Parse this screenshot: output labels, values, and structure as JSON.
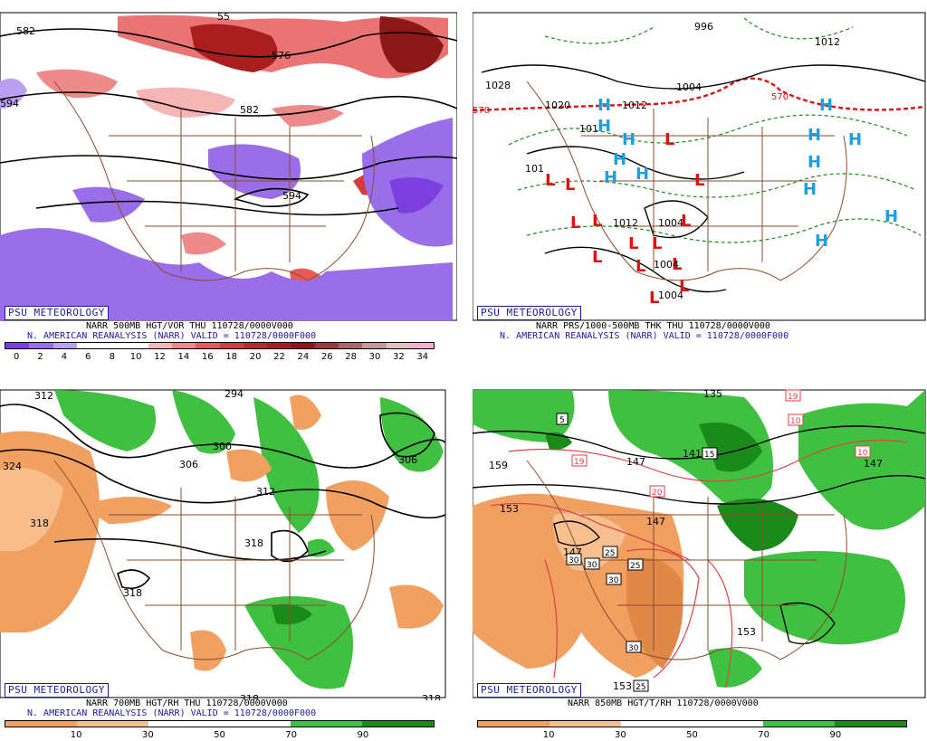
{
  "panels": [
    {
      "id": "vorticity",
      "psu_label": "PSU METEOROLOGY",
      "caption1": "NARR 500MB HGT/VOR THU 110728/0000V000",
      "caption2": "N. AMERICAN REANALYSIS (NARR) VALID = 110728/0000F000",
      "colorbar": {
        "colors": [
          "#7b3fe0",
          "#9a6ee8",
          "#b9a0f0",
          "#ffffff",
          "#ffffff",
          "#ffffff",
          "#f7b6b6",
          "#ef8a8a",
          "#e65a5a",
          "#d83a3a",
          "#c02828",
          "#a81e1e",
          "#8c1818",
          "#9a3a3a",
          "#a86a6a",
          "#c49a9a",
          "#e0c0c0",
          "#f5b0d0"
        ],
        "ticks": [
          "0",
          "2",
          "4",
          "6",
          "8",
          "10",
          "12",
          "14",
          "16",
          "18",
          "20",
          "22",
          "24",
          "26",
          "28",
          "30",
          "32",
          "34"
        ]
      },
      "labels": [
        "582",
        "594",
        "594",
        "582",
        "576",
        "55"
      ]
    },
    {
      "id": "pressure",
      "psu_label": "PSU METEOROLOGY",
      "caption1": "NARR PRS/1000-500MB THK THU 110728/0000V000",
      "caption2": "N. AMERICAN REANALYSIS (NARR) VALID = 110728/0000F000",
      "labels": [
        "996",
        "1012",
        "1028",
        "1020",
        "1012",
        "1004",
        "1004",
        "1012",
        "1004",
        "1004",
        "570",
        "570",
        "101",
        "101"
      ]
    },
    {
      "id": "h700",
      "psu_label": "PSU METEOROLOGY",
      "caption1": "NARR 700MB HGT/RH THU 110728/0000V000",
      "caption2": "N. AMERICAN REANALYSIS (NARR) VALID = 110728/0000F000",
      "colorbar": {
        "colors": [
          "#f0a060",
          "#f8c090",
          "#ffffff",
          "#ffffff",
          "#40c040",
          "#1a8a1a"
        ],
        "ticks": [
          "10",
          "30",
          "50",
          "70",
          "90"
        ]
      },
      "labels": [
        "312",
        "294",
        "324",
        "306",
        "300",
        "306",
        "312",
        "318",
        "318",
        "318",
        "318",
        "318"
      ]
    },
    {
      "id": "h850",
      "psu_label": "PSU METEOROLOGY",
      "caption1": "NARR 850MB HGT/T/RH 110728/0000V000",
      "colorbar": {
        "colors": [
          "#f0a060",
          "#f8c090",
          "#ffffff",
          "#ffffff",
          "#40c040",
          "#1a8a1a"
        ],
        "ticks": [
          "10",
          "30",
          "50",
          "70",
          "90"
        ]
      },
      "labels": [
        "135",
        "159",
        "147",
        "141",
        "147",
        "153",
        "147",
        "153",
        "147",
        "153"
      ],
      "temp_labels": [
        "5",
        "19",
        "15",
        "20",
        "10",
        "10",
        "25",
        "30",
        "30",
        "30",
        "25",
        "30",
        "25",
        "19"
      ]
    }
  ]
}
